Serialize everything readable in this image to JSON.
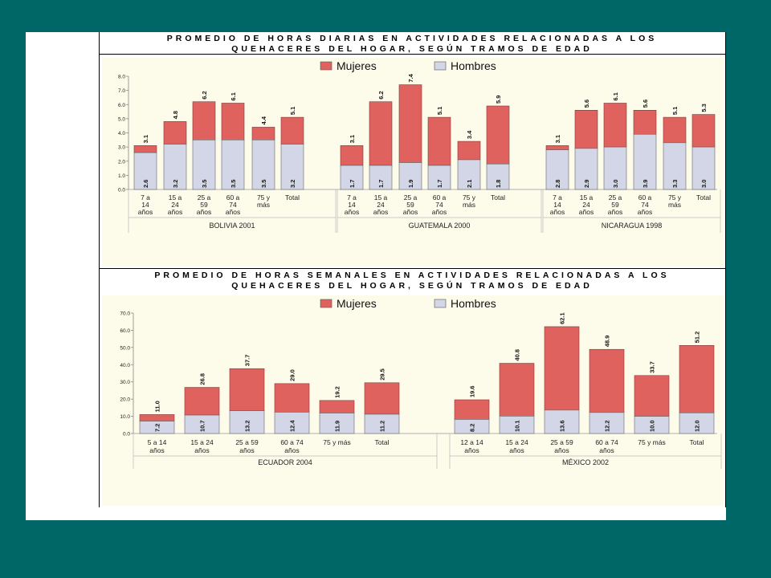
{
  "colors": {
    "background": "#006666",
    "mujeres": "#E0625F",
    "hombres": "#D3D6E6",
    "chart_bg": "#FDFBEA",
    "legend_bg": "#F7F1C8"
  },
  "top": {
    "title_line1": "PROMEDIO DE HORAS DIARIAS EN ACTIVIDADES RELACIONADAS A LOS",
    "title_line2": "QUEHACERES DEL HOGAR, SEGÚN TRAMOS DE EDAD"
  },
  "bottom": {
    "title_line1": "PROMEDIO DE HORAS SEMANALES EN ACTIVIDADES RELACIONADAS A LOS",
    "title_line2": "QUEHACERES DEL HOGAR, SEGÚN TRAMOS DE EDAD"
  },
  "chart_data": [
    {
      "type": "bar",
      "stacked": true,
      "legend": [
        "Mujeres",
        "Hombres"
      ],
      "ylim": [
        0,
        8
      ],
      "yticks": [
        "0.0",
        "1.0",
        "2.0",
        "3.0",
        "4.0",
        "5.0",
        "6.0",
        "7.0",
        "8.0"
      ],
      "groups": [
        {
          "name": "BOLIVIA 2001",
          "categories": [
            [
              "7 a",
              "14",
              "años"
            ],
            [
              "15 a",
              "24",
              "años"
            ],
            [
              "25 a",
              "59",
              "años"
            ],
            [
              "60 a",
              "74",
              "años"
            ],
            [
              "75 y",
              "más"
            ],
            [
              "Total"
            ]
          ],
          "hombres": [
            2.6,
            3.2,
            3.5,
            3.5,
            3.5,
            3.2
          ],
          "hombres_labels": [
            "2.6",
            "3.2",
            "3.5",
            "3.5",
            "3.5",
            "3.2"
          ],
          "totals": [
            3.1,
            4.8,
            6.2,
            6.1,
            4.4,
            5.1
          ],
          "total_labels": [
            "3.1",
            "4.8",
            "6.2",
            "6.1",
            "4.4",
            "5.1"
          ]
        },
        {
          "name": "GUATEMALA 2000",
          "categories": [
            [
              "7 a",
              "14",
              "años"
            ],
            [
              "15 a",
              "24",
              "años"
            ],
            [
              "25 a",
              "59",
              "años"
            ],
            [
              "60 a",
              "74",
              "años"
            ],
            [
              "75 y",
              "más"
            ],
            [
              "Total"
            ]
          ],
          "hombres": [
            1.7,
            1.7,
            1.9,
            1.7,
            2.1,
            1.8
          ],
          "hombres_labels": [
            "1.7",
            "1.7",
            "1.9",
            "1.7",
            "2.1",
            "1.8"
          ],
          "totals": [
            3.1,
            6.2,
            7.4,
            5.1,
            3.4,
            5.9
          ],
          "total_labels": [
            "3.1",
            "6.2",
            "7.4",
            "5.1",
            "3.4",
            "5.9"
          ]
        },
        {
          "name": "NICARAGUA 1998",
          "categories": [
            [
              "7 a",
              "14",
              "años"
            ],
            [
              "15 a",
              "24",
              "años"
            ],
            [
              "25 a",
              "59",
              "años"
            ],
            [
              "60 a",
              "74",
              "años"
            ],
            [
              "75 y",
              "más"
            ],
            [
              "Total"
            ]
          ],
          "hombres": [
            2.8,
            2.9,
            3.0,
            3.9,
            3.3,
            3.0
          ],
          "hombres_labels": [
            "2.8",
            "2.9",
            "3.0",
            "3.9",
            "3.3",
            "3.0"
          ],
          "totals": [
            3.1,
            5.6,
            6.1,
            5.6,
            5.1,
            5.3
          ],
          "total_labels": [
            "3.1",
            "5.6",
            "6.1",
            "5.6",
            "5.1",
            "5.3"
          ]
        }
      ]
    },
    {
      "type": "bar",
      "stacked": true,
      "legend": [
        "Mujeres",
        "Hombres"
      ],
      "ylim": [
        0,
        70
      ],
      "yticks": [
        "0.0",
        "10.0",
        "20.0",
        "30.0",
        "40.0",
        "50.0",
        "60.0",
        "70.0"
      ],
      "groups": [
        {
          "name": "ECUADOR 2004",
          "categories": [
            [
              "5 a 14",
              "años"
            ],
            [
              "15 a 24",
              "años"
            ],
            [
              "25 a 59",
              "años"
            ],
            [
              "60 a 74",
              "años"
            ],
            [
              "75 y más"
            ],
            [
              "Total"
            ]
          ],
          "hombres": [
            7.2,
            10.7,
            13.2,
            12.4,
            11.9,
            11.2
          ],
          "hombres_labels": [
            "7.2",
            "10.7",
            "13.2",
            "12.4",
            "11.9",
            "11.2"
          ],
          "totals": [
            11.0,
            26.8,
            37.7,
            29.0,
            19.2,
            29.5
          ],
          "total_labels": [
            "11.0",
            "26.8",
            "37.7",
            "29.0",
            "19.2",
            "29.5"
          ]
        },
        {
          "name": "MÉXICO 2002",
          "categories": [
            [
              "12 a 14",
              "años"
            ],
            [
              "15 a 24",
              "años"
            ],
            [
              "25 a 59",
              "años"
            ],
            [
              "60 a 74",
              "años"
            ],
            [
              "75 y más"
            ],
            [
              "Total"
            ]
          ],
          "hombres": [
            8.2,
            10.1,
            13.6,
            12.2,
            10.0,
            12.0
          ],
          "hombres_labels": [
            "8.2",
            "10.1",
            "13.6",
            "12.2",
            "10.0",
            "12.0"
          ],
          "totals": [
            19.6,
            40.8,
            62.1,
            48.9,
            33.7,
            51.2
          ],
          "total_labels": [
            "19.6",
            "40.8",
            "62.1",
            "48.9",
            "33.7",
            "51.2"
          ]
        }
      ]
    }
  ]
}
